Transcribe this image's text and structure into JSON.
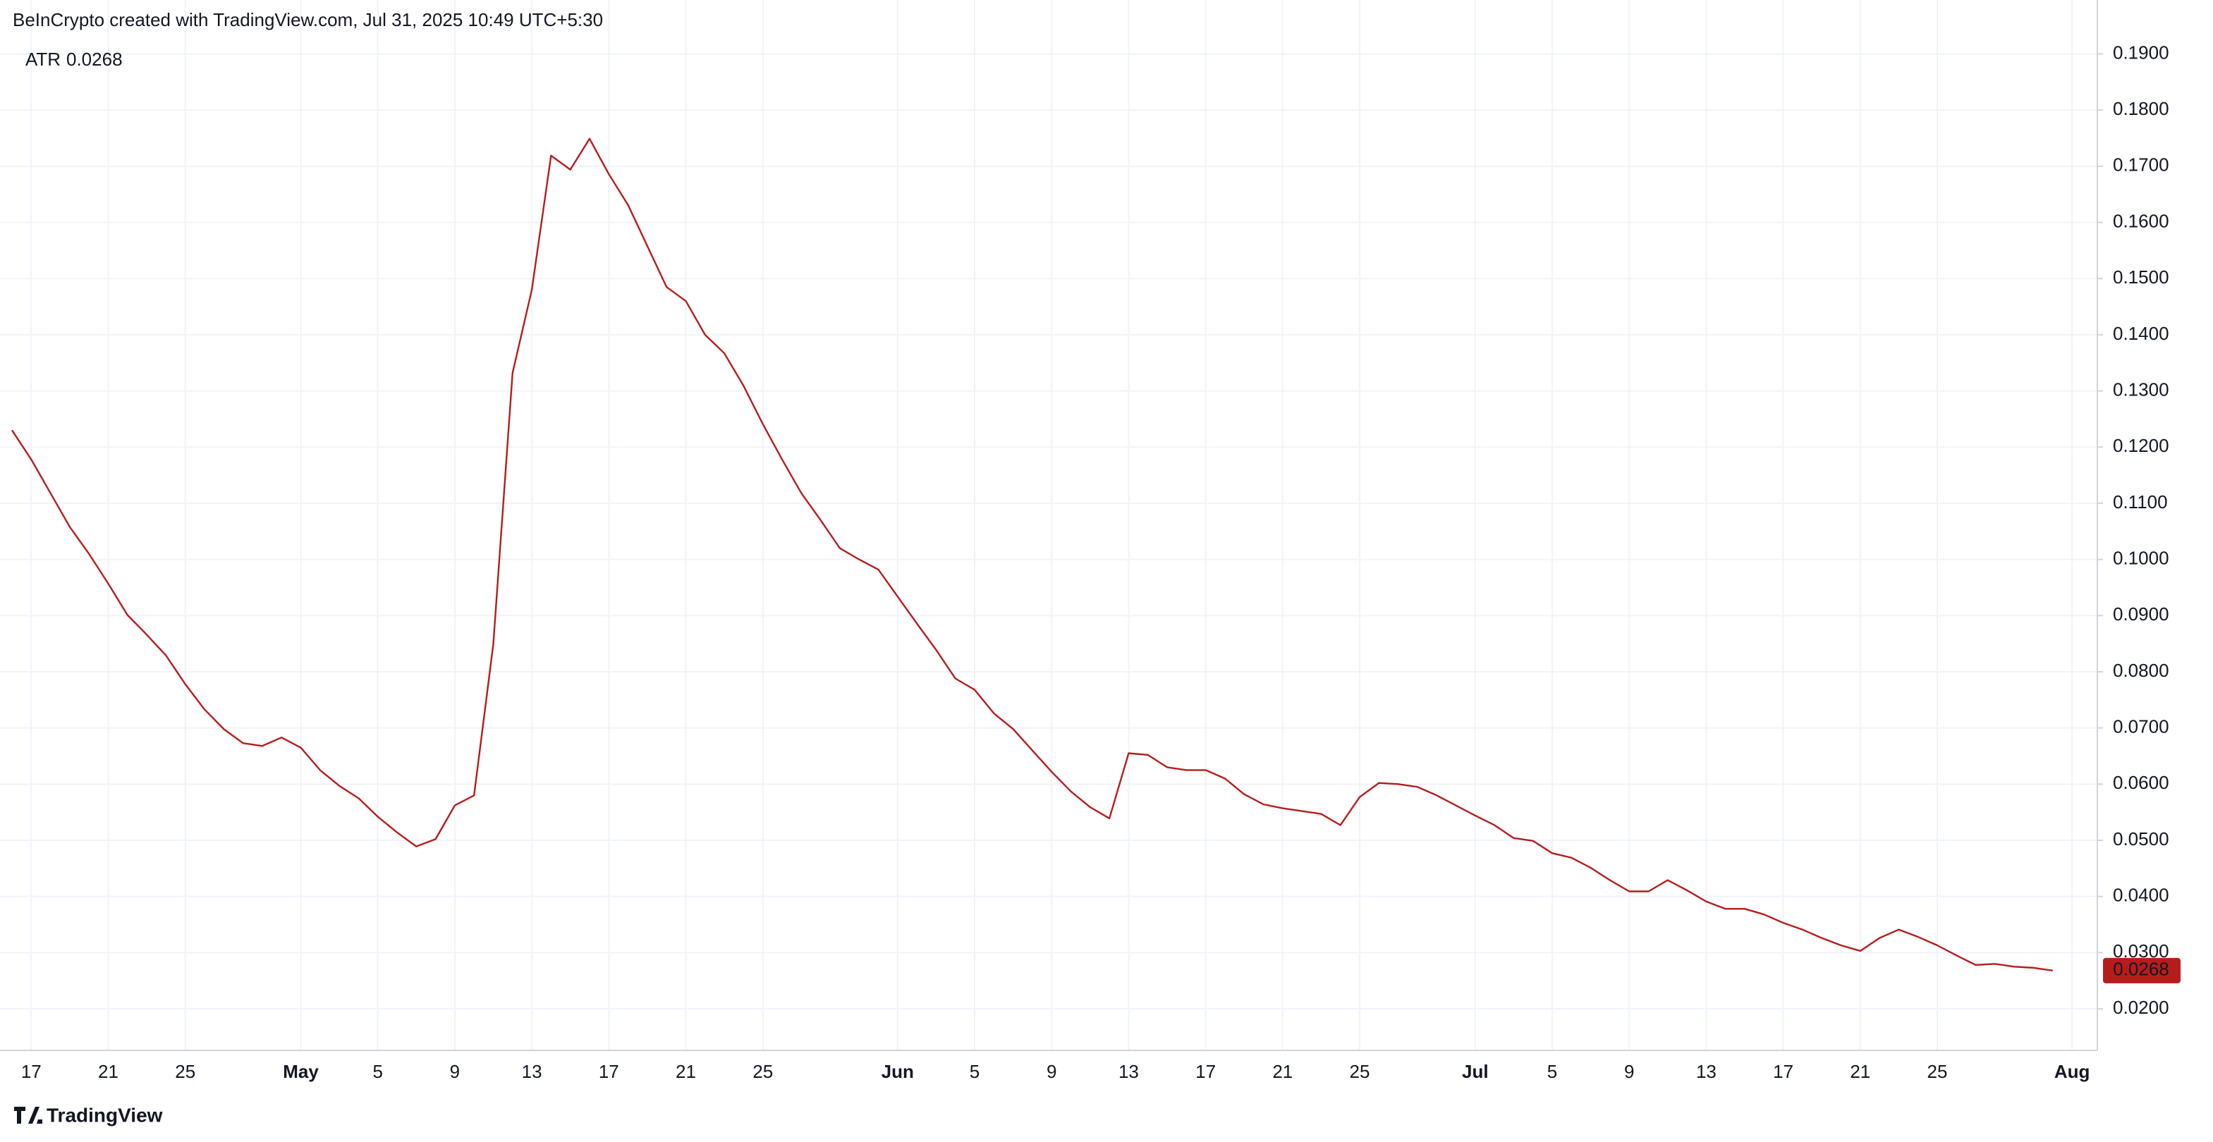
{
  "chart_data": {
    "type": "line",
    "title": "BeInCrypto created with TradingView.com, Jul 31, 2025 10:49 UTC+5:30",
    "footer": "TradingView",
    "categories": [
      null,
      "17",
      null,
      null,
      null,
      "21",
      null,
      null,
      null,
      "25",
      null,
      null,
      null,
      null,
      null,
      "May",
      null,
      null,
      null,
      "5",
      null,
      null,
      null,
      "9",
      null,
      null,
      null,
      "13",
      null,
      null,
      null,
      "17",
      null,
      null,
      null,
      "21",
      null,
      null,
      null,
      "25",
      null,
      null,
      null,
      null,
      null,
      null,
      "Jun",
      null,
      null,
      null,
      "5",
      null,
      null,
      null,
      "9",
      null,
      null,
      null,
      "13",
      null,
      null,
      null,
      "17",
      null,
      null,
      null,
      "21",
      null,
      null,
      null,
      "25",
      null,
      null,
      null,
      null,
      null,
      "Jul",
      null,
      null,
      null,
      "5",
      null,
      null,
      null,
      "9",
      null,
      null,
      null,
      "13",
      null,
      null,
      null,
      "17",
      null,
      null,
      null,
      "21",
      null,
      null,
      null,
      "25",
      null,
      null,
      null,
      null,
      null,
      null,
      "Aug"
    ],
    "series": [
      {
        "name": "ATR",
        "color": "#b71c1c",
        "values": [
          0.123,
          0.1178,
          0.1118,
          0.1058,
          0.101,
          0.0957,
          0.0901,
          0.0866,
          0.0829,
          0.0778,
          0.0733,
          0.0698,
          0.0673,
          0.0668,
          0.0683,
          0.0665,
          0.0625,
          0.0597,
          0.0575,
          0.0542,
          0.0514,
          0.0489,
          0.0502,
          0.0562,
          0.058,
          0.0849,
          0.1332,
          0.148,
          0.1719,
          0.1694,
          0.1749,
          0.1686,
          0.1631,
          0.1558,
          0.1485,
          0.146,
          0.14,
          0.1367,
          0.1309,
          0.1241,
          0.1178,
          0.1118,
          0.107,
          0.102,
          0.1,
          0.0982,
          0.0934,
          0.0886,
          0.0839,
          0.0788,
          0.0768,
          0.0726,
          0.0698,
          0.066,
          0.0622,
          0.0587,
          0.0559,
          0.0539,
          0.0655,
          0.0652,
          0.063,
          0.0625,
          0.0625,
          0.061,
          0.0582,
          0.0564,
          0.0557,
          0.0552,
          0.0547,
          0.0527,
          0.0577,
          0.0602,
          0.06,
          0.0595,
          0.058,
          0.0562,
          0.0544,
          0.0527,
          0.0504,
          0.0499,
          0.0477,
          0.0469,
          0.0451,
          0.0429,
          0.0409,
          0.0409,
          0.0429,
          0.0411,
          0.0391,
          0.0378,
          0.0378,
          0.0368,
          0.0353,
          0.0341,
          0.0326,
          0.0313,
          0.0303,
          0.0326,
          0.0341,
          0.0328,
          0.0313,
          0.0295,
          0.0278,
          0.028,
          0.0275,
          0.0273,
          0.0268,
          null
        ],
        "value_labels": [
          null,
          null,
          null,
          null,
          null,
          null,
          null,
          null,
          null,
          null,
          null,
          null,
          null,
          null,
          null,
          null,
          null,
          null,
          null,
          null,
          null,
          null,
          null,
          null,
          null,
          null,
          null,
          null,
          null,
          null,
          null,
          null,
          null,
          null,
          null,
          null,
          null,
          null,
          null,
          null,
          null,
          null,
          null,
          null,
          null,
          null,
          null,
          null,
          null,
          null,
          null,
          null,
          null,
          null,
          null,
          null,
          null,
          null,
          null,
          null,
          null,
          null,
          null,
          null,
          null,
          null,
          null,
          null,
          null,
          null,
          null,
          null,
          null,
          null,
          null,
          null,
          null,
          null,
          null,
          null,
          null,
          null,
          null,
          null,
          null,
          null,
          null,
          null,
          null,
          null,
          null,
          null,
          null,
          null,
          null,
          null,
          null,
          null,
          null,
          null,
          null,
          null,
          null,
          null,
          null,
          null,
          "0.0268",
          null
        ]
      }
    ],
    "ylim": [
      0.0126,
      0.1996
    ],
    "yticks": [
      {
        "value": 0.02,
        "label": "0.0200"
      },
      {
        "value": 0.03,
        "label": "0.0300"
      },
      {
        "value": 0.04,
        "label": "0.0400"
      },
      {
        "value": 0.05,
        "label": "0.0500"
      },
      {
        "value": 0.06,
        "label": "0.0600"
      },
      {
        "value": 0.07,
        "label": "0.0700"
      },
      {
        "value": 0.08,
        "label": "0.0800"
      },
      {
        "value": 0.09,
        "label": "0.0900"
      },
      {
        "value": 0.1,
        "label": "0.1000"
      },
      {
        "value": 0.11,
        "label": "0.1100"
      },
      {
        "value": 0.12,
        "label": "0.1200"
      },
      {
        "value": 0.13,
        "label": "0.1300"
      },
      {
        "value": 0.14,
        "label": "0.1400"
      },
      {
        "value": 0.15,
        "label": "0.1500"
      },
      {
        "value": 0.16,
        "label": "0.1600"
      },
      {
        "value": 0.17,
        "label": "0.1700"
      },
      {
        "value": 0.18,
        "label": "0.1800"
      },
      {
        "value": 0.19,
        "label": "0.1900"
      }
    ],
    "grid": true
  }
}
